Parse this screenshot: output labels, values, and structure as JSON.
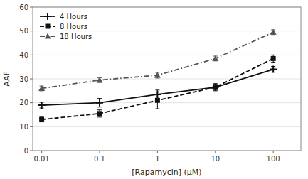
{
  "chart_data": {
    "type": "line",
    "xlabel": "[Rapamycin] (μM)",
    "ylabel": "AAF",
    "x": [
      0.01,
      0.1,
      1,
      10,
      100
    ],
    "series": [
      {
        "name": "4 Hours",
        "color": "#111111",
        "marker": "plus",
        "line_style": "solid",
        "values": [
          19,
          20.0,
          23.5,
          26.5,
          34
        ],
        "errors": [
          1.2,
          1.8,
          1.8,
          1.2,
          1.2
        ]
      },
      {
        "name": "8 Hours",
        "color": "#111111",
        "marker": "square",
        "line_style": "dashed",
        "values": [
          13,
          15.5,
          21,
          26.5,
          38.5
        ],
        "errors": [
          1.0,
          1.5,
          3.5,
          1.5,
          1.5
        ]
      },
      {
        "name": "18 Hours",
        "color": "#555555",
        "marker": "triangle",
        "line_style": "dashdot",
        "values": [
          26,
          29.5,
          31.5,
          38.5,
          49.5
        ],
        "errors": [
          1.0,
          1.0,
          1.2,
          1.0,
          1.0
        ]
      }
    ],
    "log": "x",
    "xlim": [
      0.007,
      300
    ],
    "xticks": [
      0.01,
      0.1,
      1,
      10,
      100
    ],
    "ylim": [
      0,
      60
    ],
    "yticks": [
      0,
      10,
      20,
      30,
      40,
      50,
      60
    ],
    "grid": true,
    "legend": "upper left"
  }
}
